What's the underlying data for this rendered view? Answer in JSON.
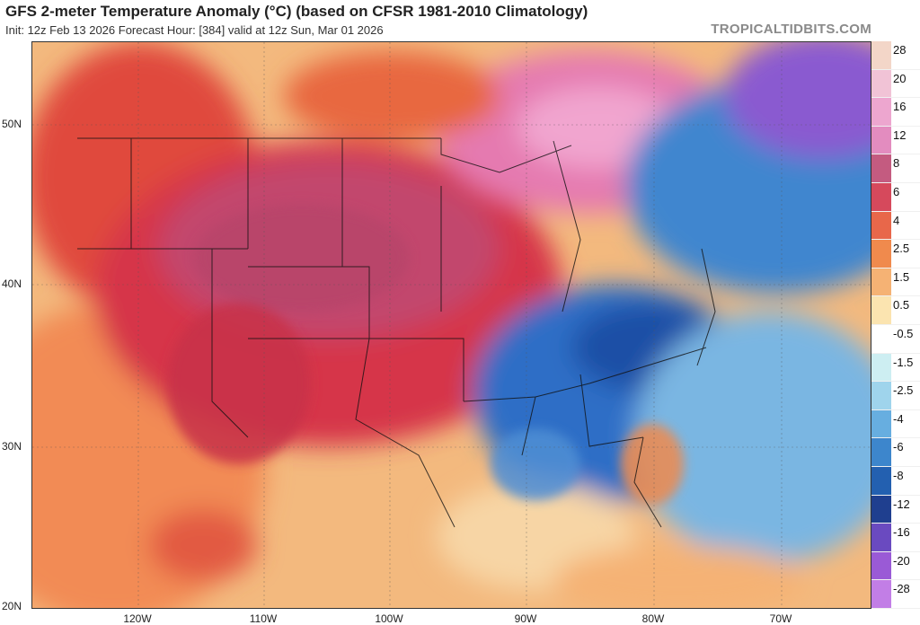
{
  "header": {
    "title": "GFS 2-meter Temperature Anomaly (°C) (based on CFSR 1981-2010 Climatology)",
    "subtitle": "Init: 12z Feb 13 2026   Forecast Hour: [384]   valid at 12z Sun, Mar 01 2026",
    "brand": "TROPICALTIDBITS.COM"
  },
  "axes": {
    "lat_labels": [
      "50N",
      "40N",
      "30N",
      "20N"
    ],
    "lon_labels": [
      "120W",
      "110W",
      "100W",
      "90W",
      "80W",
      "70W"
    ]
  },
  "legend": {
    "labels": [
      "28",
      "20",
      "16",
      "12",
      "8",
      "6",
      "4",
      "2.5",
      "1.5",
      "0.5",
      "-0.5",
      "-1.5",
      "-2.5",
      "-4",
      "-6",
      "-8",
      "-12",
      "-16",
      "-20",
      "-28"
    ],
    "colors": [
      "#f3d6c8",
      "#f1c3d6",
      "#eda6cf",
      "#e38cbf",
      "#c45b80",
      "#d6495c",
      "#e8674a",
      "#f08a4d",
      "#f5b274",
      "#fbe4b0",
      "#ffffff",
      "#cdeef2",
      "#9fd4ec",
      "#67aee0",
      "#3d86cc",
      "#2360b0",
      "#1f3f8f",
      "#6a4ac0",
      "#9a5ad6",
      "#c27ee6"
    ]
  },
  "colors": {
    "warm_anomaly": "#d6495c",
    "cold_anomaly": "#2e6fc2",
    "background": "#ffffff"
  }
}
